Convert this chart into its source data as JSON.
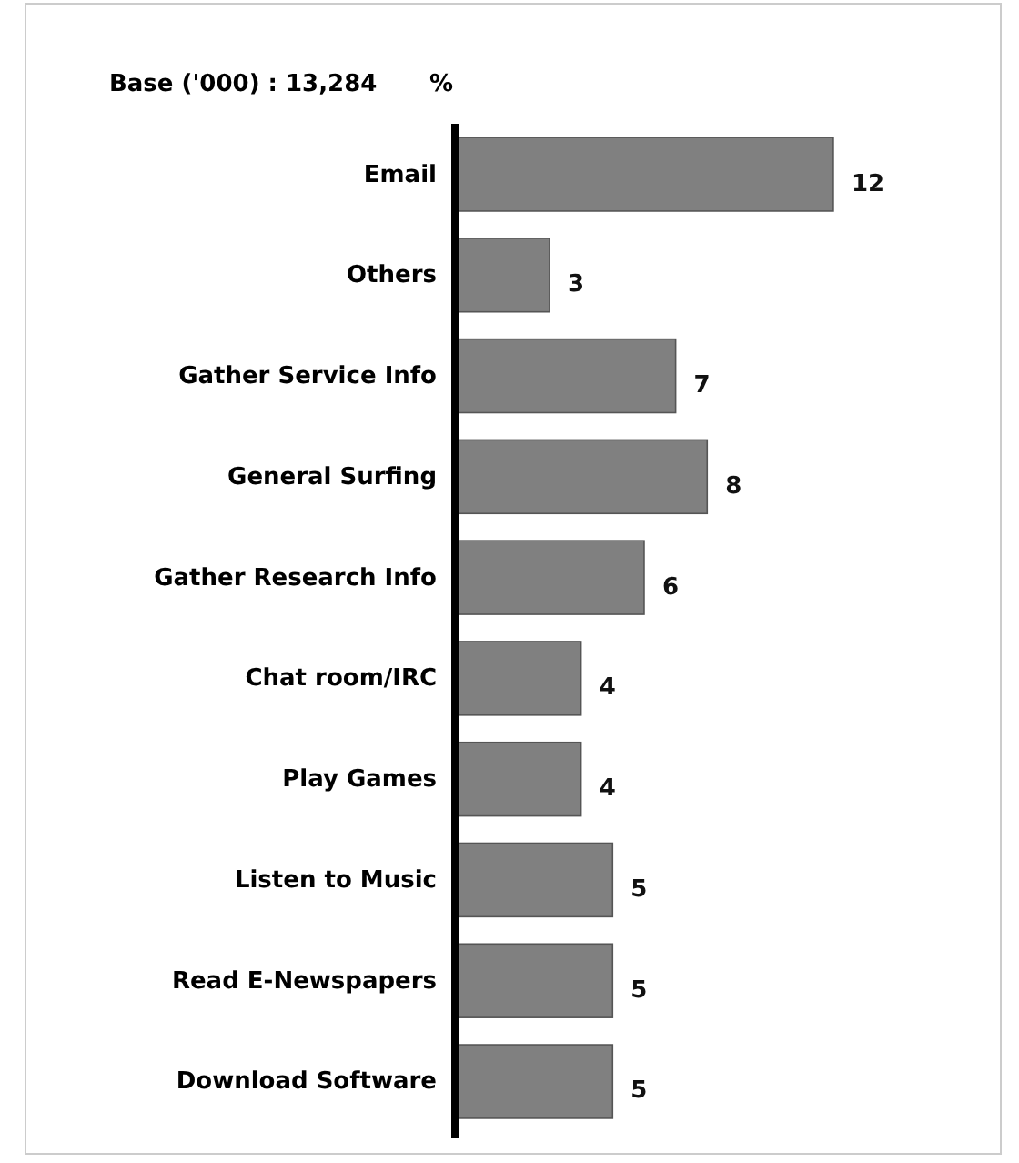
{
  "chart_data": {
    "type": "bar",
    "orientation": "horizontal",
    "title": "Base ('000) : 13,284",
    "xlabel": "%",
    "categories": [
      "Email",
      "Others",
      "Gather Service Info",
      "General Surfing",
      "Gather Research Info",
      "Chat room/IRC",
      "Play Games",
      "Listen to Music",
      "Read E-Newspapers",
      "Download Software"
    ],
    "values": [
      12,
      3,
      7,
      8,
      6,
      4,
      4,
      5,
      5,
      5
    ],
    "color": "#808080",
    "data_labels": true
  }
}
